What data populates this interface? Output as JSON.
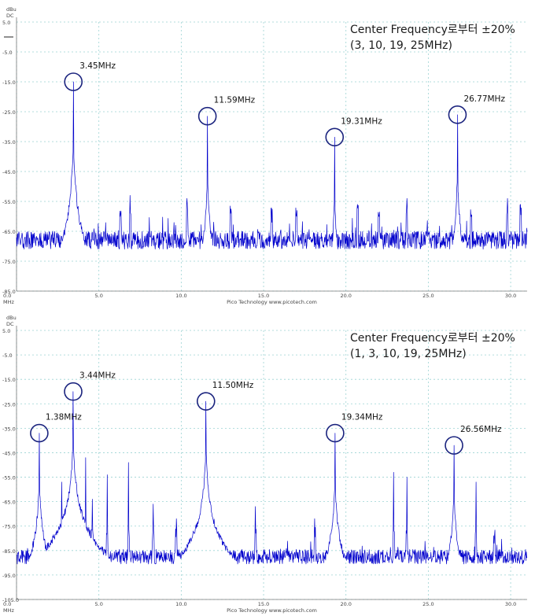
{
  "chart_data": [
    {
      "type": "line",
      "title": "Center Frequency로부터 ±20%",
      "subtitle": "(3, 10, 19, 25MHz)",
      "unit_labels": [
        "dBu",
        "DC"
      ],
      "xlabel": "MHz",
      "footer": "Pico Technology   www.picotech.com",
      "xlim": [
        0.0,
        31.0
      ],
      "ylim": [
        -85.0,
        5.0
      ],
      "xticks": [
        "0.0",
        "5.0",
        "10.0",
        "15.0",
        "20.0",
        "25.0",
        "30.0"
      ],
      "yticks": [
        "5.0",
        "-5.0",
        "-15.0",
        "-25.0",
        "-35.0",
        "-45.0",
        "-55.0",
        "-65.0",
        "-75.0",
        "-85.0"
      ],
      "grid": true,
      "noise_floor": -68.0,
      "series_color": "#0000cc",
      "marker_color": "#1a237e",
      "peaks": [
        {
          "freq": 3.45,
          "level": -15.0,
          "label": "3.45MHz",
          "marked": true
        },
        {
          "freq": 11.59,
          "level": -26.5,
          "label": "11.59MHz",
          "marked": true
        },
        {
          "freq": 19.31,
          "level": -33.5,
          "label": "19.31MHz",
          "marked": true
        },
        {
          "freq": 26.77,
          "level": -26.0,
          "label": "26.77MHz",
          "marked": true
        },
        {
          "freq": 6.9,
          "level": -53.0,
          "marked": false
        },
        {
          "freq": 6.3,
          "level": -60.0,
          "marked": false
        },
        {
          "freq": 10.35,
          "level": -54.0,
          "marked": false
        },
        {
          "freq": 13.0,
          "level": -59.0,
          "marked": false
        },
        {
          "freq": 15.5,
          "level": -62.0,
          "marked": false
        },
        {
          "freq": 17.0,
          "level": -60.0,
          "marked": false
        },
        {
          "freq": 20.7,
          "level": -56.0,
          "marked": false
        },
        {
          "freq": 22.0,
          "level": -60.0,
          "marked": false
        },
        {
          "freq": 23.7,
          "level": -54.0,
          "marked": false
        },
        {
          "freq": 27.6,
          "level": -60.0,
          "marked": false
        },
        {
          "freq": 29.8,
          "level": -54.0,
          "marked": false
        },
        {
          "freq": 30.6,
          "level": -56.0,
          "marked": false
        }
      ]
    },
    {
      "type": "line",
      "title": "Center Frequency로부터 ±20%",
      "subtitle": "(1, 3, 10, 19, 25MHz)",
      "unit_labels": [
        "dBu",
        "DC"
      ],
      "xlabel": "MHz",
      "footer": "Pico Technology   www.picotech.com",
      "xlim": [
        0.0,
        31.0
      ],
      "ylim": [
        -105.0,
        5.0
      ],
      "xticks": [
        "0.0",
        "5.0",
        "10.0",
        "15.0",
        "20.0",
        "25.0",
        "30.0"
      ],
      "yticks": [
        "5.0",
        "-5.0",
        "-15.0",
        "-25.0",
        "-35.0",
        "-45.0",
        "-55.0",
        "-65.0",
        "-75.0",
        "-85.0",
        "-95.0",
        "-105.0"
      ],
      "grid": true,
      "noise_floor": -87.5,
      "series_color": "#0000cc",
      "marker_color": "#1a237e",
      "peaks": [
        {
          "freq": 1.38,
          "level": -37.0,
          "label": "1.38MHz",
          "marked": true
        },
        {
          "freq": 3.44,
          "level": -20.0,
          "label": "3.44MHz",
          "marked": true
        },
        {
          "freq": 11.5,
          "level": -24.0,
          "label": "11.50MHz",
          "marked": true
        },
        {
          "freq": 19.34,
          "level": -37.0,
          "label": "19.34MHz",
          "marked": true
        },
        {
          "freq": 26.56,
          "level": -42.0,
          "label": "26.56MHz",
          "marked": true
        },
        {
          "freq": 2.75,
          "level": -57.0,
          "marked": false
        },
        {
          "freq": 4.2,
          "level": -47.0,
          "marked": false
        },
        {
          "freq": 4.6,
          "level": -64.0,
          "marked": false
        },
        {
          "freq": 5.5,
          "level": -54.0,
          "marked": false
        },
        {
          "freq": 6.8,
          "level": -49.0,
          "marked": false
        },
        {
          "freq": 8.3,
          "level": -66.0,
          "marked": false
        },
        {
          "freq": 9.7,
          "level": -72.0,
          "marked": false
        },
        {
          "freq": 14.5,
          "level": -67.0,
          "marked": false
        },
        {
          "freq": 18.1,
          "level": -72.0,
          "marked": false
        },
        {
          "freq": 22.9,
          "level": -53.0,
          "marked": false
        },
        {
          "freq": 23.7,
          "level": -55.0,
          "marked": false
        },
        {
          "freq": 27.9,
          "level": -57.0,
          "marked": false
        },
        {
          "freq": 29.0,
          "level": -82.0,
          "marked": false
        }
      ]
    }
  ]
}
